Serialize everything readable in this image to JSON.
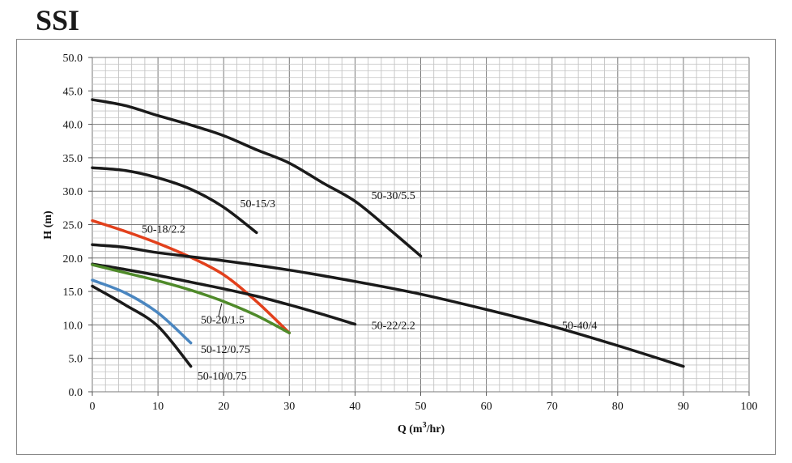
{
  "chart_data": {
    "type": "line",
    "title": "SSI",
    "xlabel": "Q (m3/hr)",
    "ylabel": "H (m)",
    "xlim": [
      0,
      100
    ],
    "ylim": [
      0,
      50
    ],
    "x_ticks": [
      "0",
      "10",
      "20",
      "30",
      "40",
      "50",
      "60",
      "70",
      "80",
      "90",
      "100"
    ],
    "y_ticks": [
      "0.0",
      "5.0",
      "10.0",
      "15.0",
      "20.0",
      "25.0",
      "30.0",
      "35.0",
      "40.0",
      "45.0",
      "50.0"
    ],
    "grid": true,
    "series": [
      {
        "name": "50-30/5.5",
        "color": "#1a1a1a",
        "points": [
          [
            0,
            43.7
          ],
          [
            5,
            42.8
          ],
          [
            10,
            41.3
          ],
          [
            15,
            39.9
          ],
          [
            20,
            38.3
          ],
          [
            25,
            36.2
          ],
          [
            30,
            34.2
          ],
          [
            35,
            31.3
          ],
          [
            40,
            28.5
          ],
          [
            45,
            24.5
          ],
          [
            50,
            20.3
          ]
        ]
      },
      {
        "name": "50-15/3",
        "color": "#1a1a1a",
        "points": [
          [
            0,
            33.5
          ],
          [
            5,
            33.1
          ],
          [
            10,
            32.0
          ],
          [
            15,
            30.3
          ],
          [
            20,
            27.6
          ],
          [
            25,
            23.8
          ]
        ]
      },
      {
        "name": "50-18/2.2",
        "color": "#e2401c",
        "points": [
          [
            0,
            25.6
          ],
          [
            5,
            24.0
          ],
          [
            10,
            22.2
          ],
          [
            15,
            20.1
          ],
          [
            20,
            17.5
          ],
          [
            25,
            13.5
          ],
          [
            30,
            8.8
          ]
        ]
      },
      {
        "name": "50-40/4",
        "color": "#1a1a1a",
        "points": [
          [
            0,
            22.0
          ],
          [
            5,
            21.6
          ],
          [
            10,
            20.8
          ],
          [
            20,
            19.6
          ],
          [
            30,
            18.2
          ],
          [
            40,
            16.5
          ],
          [
            50,
            14.6
          ],
          [
            60,
            12.3
          ],
          [
            70,
            9.8
          ],
          [
            80,
            6.9
          ],
          [
            90,
            3.8
          ]
        ]
      },
      {
        "name": "50-22/2.2",
        "color": "#1a1a1a",
        "points": [
          [
            0,
            19.1
          ],
          [
            5,
            18.3
          ],
          [
            10,
            17.4
          ],
          [
            15,
            16.4
          ],
          [
            20,
            15.4
          ],
          [
            25,
            14.3
          ],
          [
            30,
            13.0
          ],
          [
            35,
            11.6
          ],
          [
            40,
            10.1
          ]
        ]
      },
      {
        "name": "50-20/1.5",
        "color": "#4f8a2a",
        "points": [
          [
            0,
            19.0
          ],
          [
            5,
            17.8
          ],
          [
            10,
            16.6
          ],
          [
            15,
            15.2
          ],
          [
            20,
            13.5
          ],
          [
            25,
            11.4
          ],
          [
            30,
            8.8
          ]
        ]
      },
      {
        "name": "50-12/0.75",
        "color": "#4a86c0",
        "points": [
          [
            0,
            16.7
          ],
          [
            5,
            14.8
          ],
          [
            10,
            11.8
          ],
          [
            15,
            7.3
          ]
        ]
      },
      {
        "name": "50-10/0.75",
        "color": "#1a1a1a",
        "points": [
          [
            0,
            15.8
          ],
          [
            5,
            13.0
          ],
          [
            10,
            9.8
          ],
          [
            15,
            3.8
          ]
        ]
      }
    ]
  }
}
